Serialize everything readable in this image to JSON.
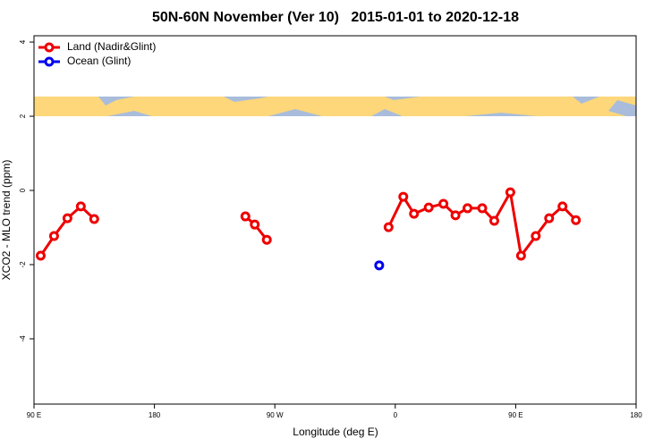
{
  "chart_data": {
    "type": "line",
    "title": "50N-60N November (Ver 10)   2015-01-01 to 2020-12-18",
    "x_label": "Longitude (deg E)",
    "y_label": "XCO2 - MLO trend (ppm)",
    "xlim": [
      90,
      540
    ],
    "xticks": [
      {
        "value": 90,
        "label": "90 E"
      },
      {
        "value": 180,
        "label": "180"
      },
      {
        "value": 270,
        "label": "90 W"
      },
      {
        "value": 360,
        "label": "0"
      },
      {
        "value": 450,
        "label": "90 E"
      },
      {
        "value": 540,
        "label": "180"
      }
    ],
    "ylim": [
      -5.76,
      4.17
    ],
    "yticks": [
      -4,
      -2,
      0,
      2,
      4
    ],
    "legend": "top-left",
    "series": [
      {
        "name": "Land (Nadir&Glint)",
        "color": "#ee0000",
        "x": [
          95,
          105,
          115,
          125,
          135,
          null,
          248,
          255,
          264,
          null,
          355,
          366,
          374,
          385,
          396,
          405,
          414,
          425,
          434,
          446,
          454,
          465,
          475,
          485,
          495
        ],
        "values": [
          -1.76,
          -1.23,
          -0.75,
          -0.43,
          -0.77,
          null,
          -0.7,
          -0.92,
          -1.33,
          null,
          -0.99,
          -0.17,
          -0.63,
          -0.46,
          -0.36,
          -0.67,
          -0.48,
          -0.48,
          -0.82,
          -0.05,
          -1.76,
          -1.23,
          -0.75,
          -0.43,
          -0.8
        ]
      },
      {
        "name": "Ocean (Glint)",
        "color": "#0000ee",
        "x": [
          348
        ],
        "values": [
          -2.02
        ]
      }
    ]
  }
}
